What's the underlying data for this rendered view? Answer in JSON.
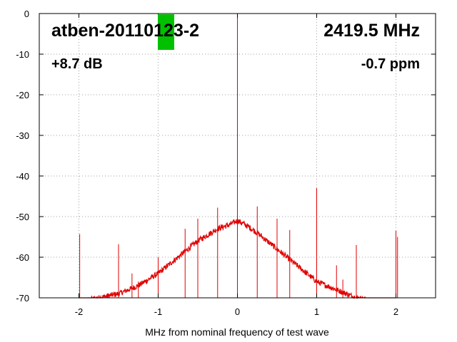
{
  "chart_data": {
    "type": "line",
    "xlabel": "MHz from nominal frequency of test wave",
    "ylabel": "",
    "xlim": [
      -2.5,
      2.5
    ],
    "ylim": [
      -70,
      0
    ],
    "xticks": [
      -2,
      -1,
      0,
      1,
      2
    ],
    "yticks": [
      0,
      -10,
      -20,
      -30,
      -40,
      -50,
      -60,
      -70
    ],
    "grid": true,
    "annotations": {
      "device": "atben-20110123-2",
      "frequency": "2419.5 MHz",
      "gain": "+8.7 dB",
      "ppm": "-0.7 ppm"
    },
    "marker_color": "#00c000",
    "series_color": "#e00000",
    "noise_floor": {
      "x": [
        -2.0,
        -1.75,
        -1.5,
        -1.25,
        -1.0,
        -0.75,
        -0.5,
        -0.25,
        -0.1,
        0.0,
        0.1,
        0.25,
        0.5,
        0.75,
        1.0,
        1.25,
        1.5,
        1.75,
        2.0
      ],
      "y": [
        -71,
        -70,
        -69,
        -67,
        -64,
        -60,
        -56,
        -53,
        -52,
        -51,
        -52,
        -54,
        -58,
        -62,
        -66,
        -68,
        -70,
        -71,
        -71
      ]
    },
    "spurs": {
      "x": [
        -1.99,
        -1.5,
        -1.33,
        -1.25,
        -1.0,
        -0.66,
        -0.5,
        -0.25,
        0.0,
        0.25,
        0.5,
        0.66,
        1.0,
        1.25,
        1.33,
        1.5,
        2.0,
        2.02
      ],
      "y": [
        -54.3,
        -56.8,
        -64,
        -66,
        -60,
        -53,
        -50.5,
        -47.8,
        0,
        -47.5,
        -50.5,
        -53.3,
        -43,
        -62,
        -65.5,
        -57,
        -53.5,
        -55
      ]
    }
  }
}
